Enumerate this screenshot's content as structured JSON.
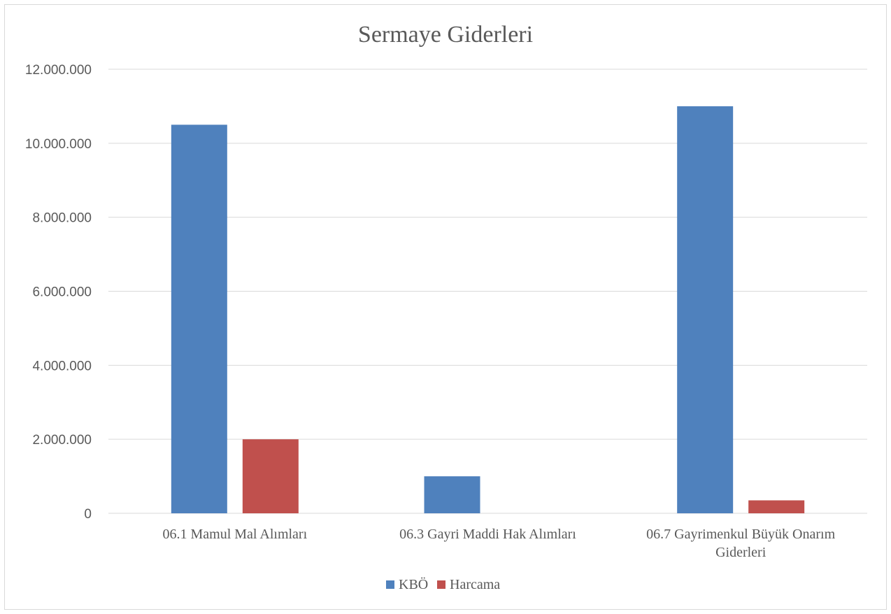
{
  "chart_data": {
    "type": "bar",
    "title": "Sermaye Giderleri",
    "categories": [
      [
        "06.1 Mamul Mal Alımları"
      ],
      [
        "06.3 Gayri Maddi Hak Alımları"
      ],
      [
        "06.7 Gayrimenkul Büyük Onarım",
        "Giderleri"
      ]
    ],
    "series": [
      {
        "name": "KBÖ",
        "color": "#4f81bd",
        "values": [
          10500000,
          1000000,
          11000000
        ]
      },
      {
        "name": "Harcama",
        "color": "#c0504d",
        "values": [
          2000000,
          0,
          350000
        ]
      }
    ],
    "ylim": [
      0,
      12000000
    ],
    "yticks": [
      0,
      2000000,
      4000000,
      6000000,
      8000000,
      10000000,
      12000000
    ],
    "ytick_labels": [
      "0",
      "2.000.000",
      "4.000.000",
      "6.000.000",
      "8.000.000",
      "10.000.000",
      "12.000.000"
    ],
    "grid": true,
    "legend": "bottom"
  }
}
